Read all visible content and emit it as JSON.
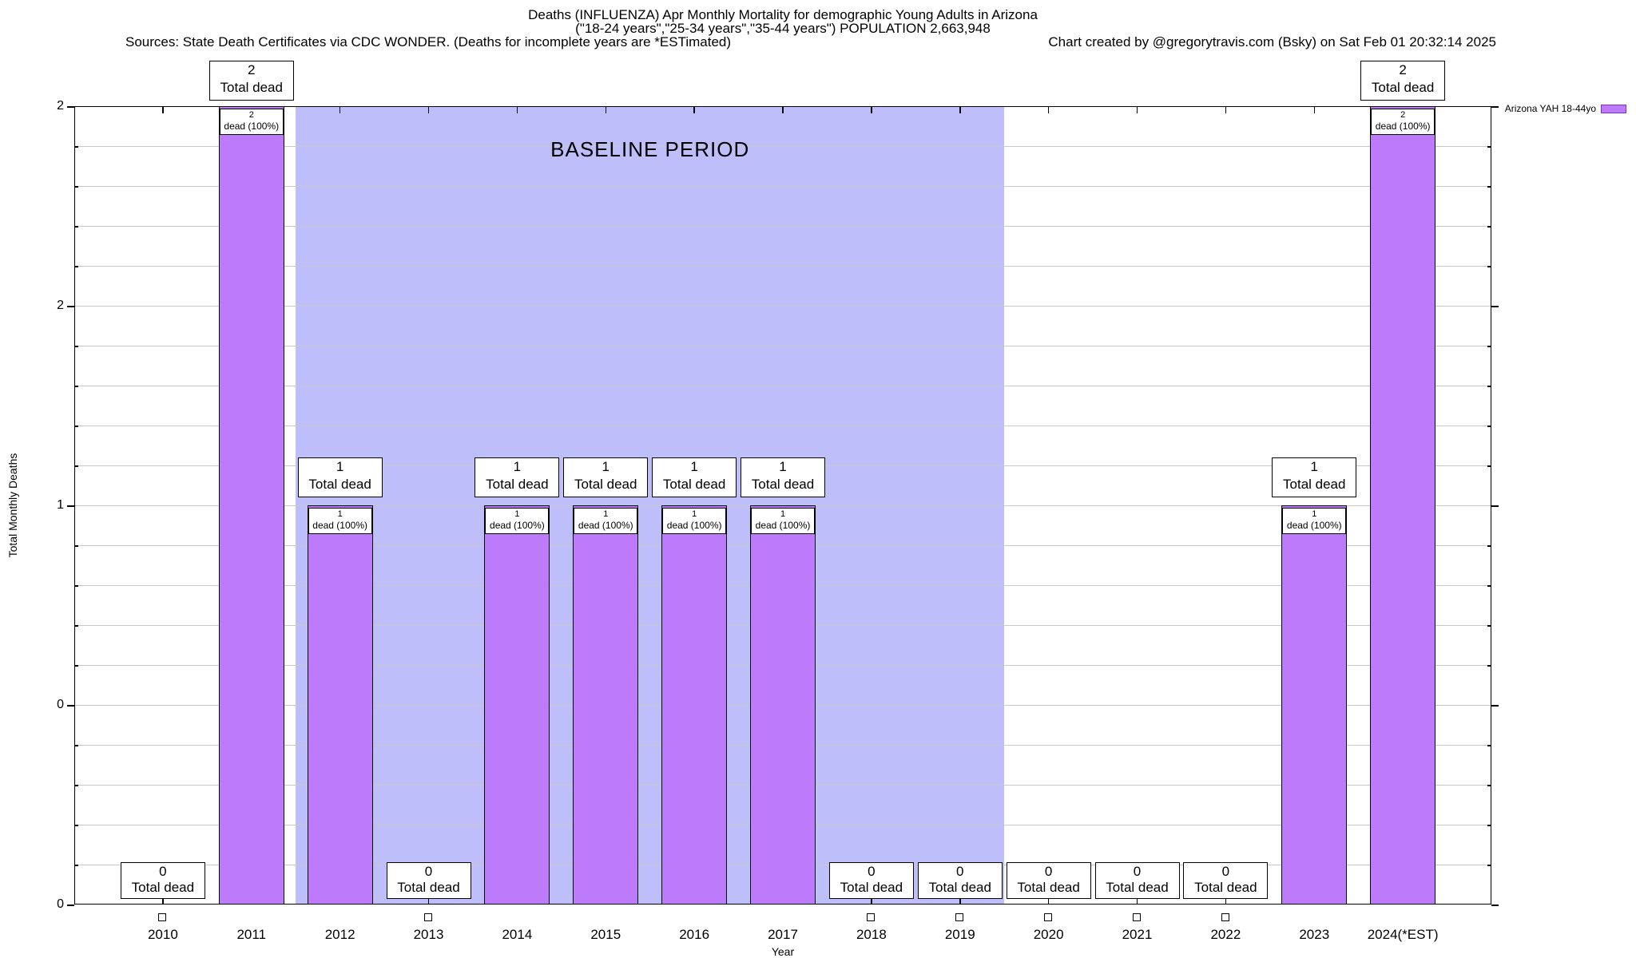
{
  "header": {
    "title_line1": "Deaths (INFLUENZA) Apr Monthly Mortality for demographic Young Adults in Arizona",
    "title_line2": "(\"18-24 years\",\"25-34 years\",\"35-44 years\") POPULATION 2,663,948",
    "sources": "Sources: State Death Certificates via CDC WONDER. (Deaths for incomplete years are *ESTimated)",
    "credit": "Chart created by @gregorytravis.com (Bsky) on Sat Feb 01 20:32:14 2025"
  },
  "chart_data": {
    "type": "bar",
    "title": "Deaths (INFLUENZA) Apr Monthly Mortality for demographic Young Adults in Arizona",
    "subtitle": "(\"18-24 years\",\"25-34 years\",\"35-44 years\") POPULATION 2,663,948",
    "categories": [
      "2010",
      "2011",
      "2012",
      "2013",
      "2014",
      "2015",
      "2016",
      "2017",
      "2018",
      "2019",
      "2020",
      "2021",
      "2022",
      "2023",
      "2024(*EST)"
    ],
    "series": [
      {
        "name": "Arizona YAH 18-44yo",
        "values": [
          0,
          2,
          1,
          0,
          1,
          1,
          1,
          1,
          0,
          0,
          0,
          0,
          0,
          1,
          2
        ]
      }
    ],
    "xlabel": "Year",
    "ylabel": "Total Monthly Deaths",
    "ylim": [
      0,
      2
    ],
    "ytick_values": [
      0,
      0.5,
      1,
      1.5,
      2
    ],
    "ytick_labels": [
      "0",
      "0",
      "1",
      "2",
      "2"
    ],
    "minor_grid_step": 0.1,
    "grid": true,
    "legend_position": "top-right",
    "bar_labels": {
      "total_dead_text": "Total dead",
      "dead_pct_text": "dead (100%)"
    },
    "annotations": {
      "baseline_band": {
        "label": "BASELINE PERIOD",
        "start_index": 1.5,
        "end_index": 9.5,
        "color": "#bebefb"
      }
    },
    "colors": {
      "bar_fill": "#bd7afb",
      "bar_border": "#000000",
      "band_fill": "#bebefb",
      "grid": "#c8c8c8",
      "legend_swatch_border": "#7a33cc"
    }
  }
}
